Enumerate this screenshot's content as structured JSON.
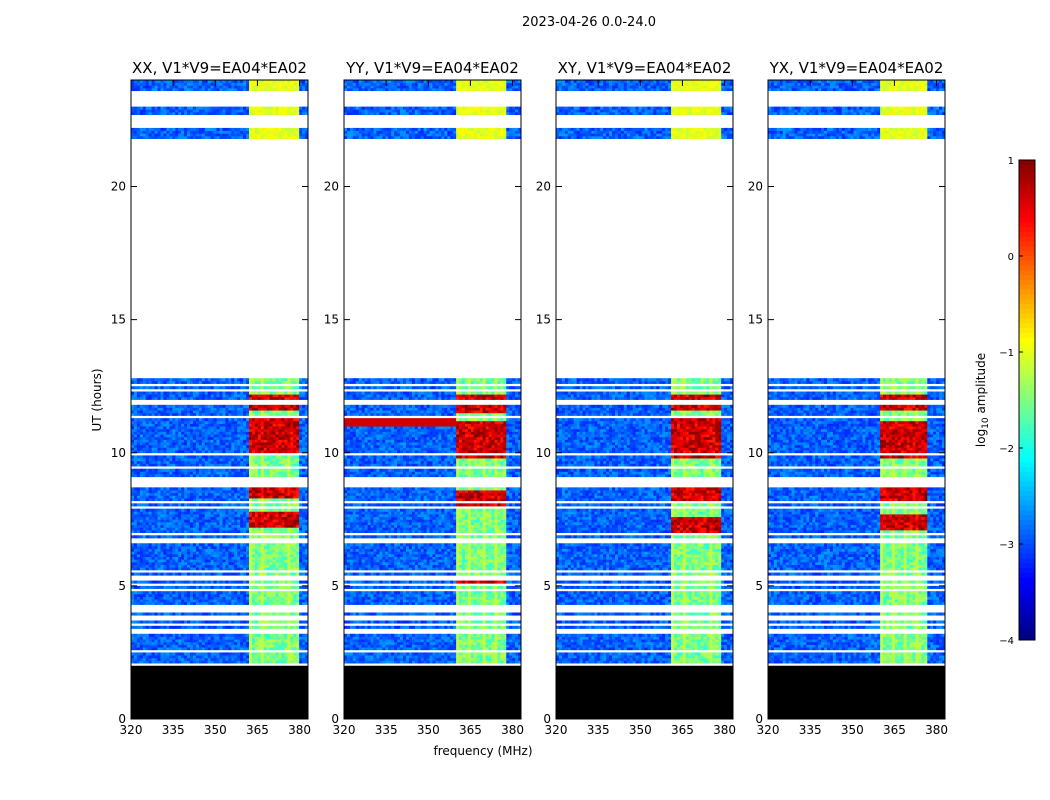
{
  "figure": {
    "suptitle": "2023-04-26 0.0-24.0"
  },
  "chart_data": {
    "type": "heatmap",
    "shared_x": {
      "label": "frequency (MHz)",
      "ticks": [
        320,
        335,
        350,
        365,
        380
      ],
      "tick_labels": [
        "320",
        "335",
        "350",
        "365",
        "380"
      ],
      "xlim": [
        320,
        383
      ]
    },
    "shared_y": {
      "label": "UT (hours)",
      "ticks": [
        0,
        5,
        10,
        15,
        20
      ],
      "tick_labels": [
        "0",
        "5",
        "10",
        "15",
        "20"
      ],
      "ylim": [
        0,
        24
      ]
    },
    "panels": [
      {
        "title": "XX, V1*V9=EA04*EA02",
        "pol": "XX",
        "strong_rfi_band": [
          362,
          380
        ],
        "strong_times": [
          [
            10.0,
            11.3
          ],
          [
            11.6,
            12.2
          ],
          [
            8.3,
            8.7
          ],
          [
            7.2,
            7.8
          ]
        ],
        "extra_line": null
      },
      {
        "title": "YY, V1*V9=EA04*EA02",
        "pol": "YY",
        "strong_rfi_band": [
          360,
          378
        ],
        "strong_times": [
          [
            9.8,
            11.2
          ],
          [
            11.5,
            12.2
          ],
          [
            8.0,
            8.6
          ],
          [
            5.1,
            5.4
          ]
        ],
        "extra_line": 11.15
      },
      {
        "title": "XY, V1*V9=EA04*EA02",
        "pol": "XY",
        "strong_rfi_band": [
          361,
          379
        ],
        "strong_times": [
          [
            9.8,
            11.3
          ],
          [
            11.6,
            12.2
          ],
          [
            8.2,
            8.7
          ],
          [
            7.0,
            7.6
          ]
        ],
        "extra_line": null
      },
      {
        "title": "YX, V1*V9=EA04*EA02",
        "pol": "YX",
        "strong_rfi_band": [
          360,
          377
        ],
        "strong_times": [
          [
            9.8,
            11.2
          ],
          [
            11.6,
            12.2
          ],
          [
            8.2,
            8.7
          ],
          [
            7.1,
            7.7
          ]
        ],
        "extra_line": null
      }
    ],
    "data_coverage_hours": [
      [
        0.0,
        2.2
      ],
      [
        2.2,
        12.8
      ],
      [
        21.8,
        24.0
      ]
    ],
    "flagged_gap_hours": [
      12.8,
      21.8
    ],
    "black_band_hours": [
      0.0,
      2.0
    ],
    "colorbar": {
      "label": "log10 amplitude",
      "label_base": "log",
      "label_sub": "10",
      "label_rest": " amplitude",
      "range": [
        -4,
        1
      ],
      "ticks": [
        1,
        0,
        -1,
        -2,
        -3,
        -4
      ],
      "tick_labels": [
        "1",
        "0",
        "−1",
        "−2",
        "−3",
        "−4"
      ],
      "colormap": "jet"
    }
  }
}
